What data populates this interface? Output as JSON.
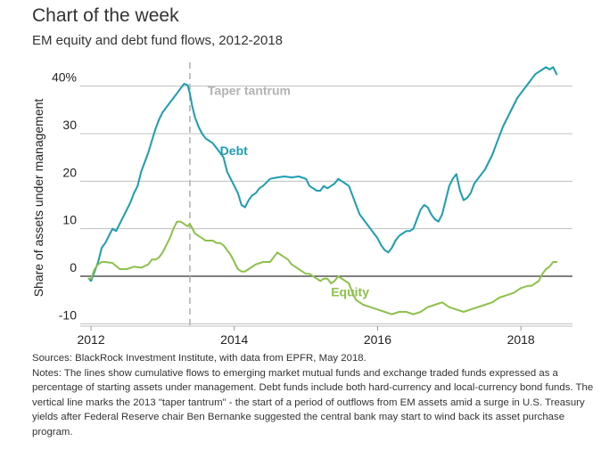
{
  "header": {
    "title": "Chart of the week",
    "subtitle": "EM equity and debt fund flows, 2012-2018"
  },
  "chart_data": {
    "type": "line",
    "ylabel": "Share of assets under management",
    "xlabel": "",
    "xlim": [
      2011.85,
      2018.72
    ],
    "ylim": [
      -10.5,
      45
    ],
    "y_ticks": [
      -10,
      0,
      10,
      20,
      30,
      40
    ],
    "y_tick_labels": [
      "-10",
      "0",
      "10",
      "20",
      "30",
      "40%"
    ],
    "x_ticks": [
      2012,
      2014,
      2016,
      2018
    ],
    "x_tick_labels": [
      "2012",
      "2014",
      "2016",
      "2018"
    ],
    "grid": true,
    "zero_line": 0,
    "vline": {
      "x": 2013.38,
      "label": "Taper tantrum",
      "color": "#b3b3b3"
    },
    "series": [
      {
        "name": "Debt",
        "color": "#1a9eb1",
        "label_at": [
          2013.8,
          25.5
        ],
        "x": [
          2011.97,
          2012.0,
          2012.05,
          2012.1,
          2012.15,
          2012.2,
          2012.25,
          2012.3,
          2012.35,
          2012.4,
          2012.45,
          2012.5,
          2012.55,
          2012.6,
          2012.65,
          2012.7,
          2012.75,
          2012.8,
          2012.85,
          2012.9,
          2012.95,
          2013.0,
          2013.05,
          2013.1,
          2013.15,
          2013.2,
          2013.25,
          2013.3,
          2013.35,
          2013.38,
          2013.41,
          2013.45,
          2013.5,
          2013.55,
          2013.6,
          2013.65,
          2013.7,
          2013.75,
          2013.8,
          2013.85,
          2013.9,
          2013.95,
          2014.0,
          2014.05,
          2014.1,
          2014.15,
          2014.2,
          2014.25,
          2014.3,
          2014.35,
          2014.4,
          2014.5,
          2014.6,
          2014.7,
          2014.8,
          2014.9,
          2015.0,
          2015.05,
          2015.1,
          2015.15,
          2015.2,
          2015.25,
          2015.3,
          2015.35,
          2015.4,
          2015.45,
          2015.5,
          2015.55,
          2015.6,
          2015.65,
          2015.7,
          2015.75,
          2015.8,
          2015.85,
          2015.9,
          2015.95,
          2016.0,
          2016.05,
          2016.1,
          2016.15,
          2016.2,
          2016.25,
          2016.3,
          2016.35,
          2016.4,
          2016.45,
          2016.5,
          2016.55,
          2016.6,
          2016.65,
          2016.7,
          2016.75,
          2016.8,
          2016.85,
          2016.9,
          2016.95,
          2017.0,
          2017.05,
          2017.1,
          2017.15,
          2017.2,
          2017.25,
          2017.3,
          2017.35,
          2017.4,
          2017.45,
          2017.5,
          2017.55,
          2017.6,
          2017.65,
          2017.7,
          2017.75,
          2017.8,
          2017.85,
          2017.9,
          2017.95,
          2018.0,
          2018.05,
          2018.1,
          2018.15,
          2018.2,
          2018.25,
          2018.3,
          2018.35,
          2018.4,
          2018.45,
          2018.5
        ],
        "values": [
          -0.5,
          -1.0,
          1.0,
          3.0,
          6.0,
          7.0,
          8.5,
          10.0,
          9.5,
          11.0,
          12.5,
          14.0,
          15.5,
          17.5,
          19.0,
          22.0,
          24.0,
          26.0,
          28.5,
          31.0,
          33.0,
          34.5,
          35.5,
          36.5,
          37.5,
          38.5,
          39.5,
          40.5,
          40.2,
          38.5,
          36.0,
          33.5,
          31.5,
          30.0,
          29.0,
          28.5,
          28.0,
          27.0,
          26.0,
          25.0,
          22.0,
          20.5,
          19.0,
          17.5,
          15.0,
          14.5,
          16.0,
          17.0,
          17.5,
          18.5,
          19.0,
          20.5,
          20.8,
          21.0,
          20.8,
          21.0,
          20.5,
          19.0,
          18.5,
          18.0,
          18.0,
          19.0,
          18.5,
          19.0,
          19.5,
          20.5,
          20.0,
          19.5,
          19.0,
          17.0,
          15.0,
          13.0,
          12.0,
          11.0,
          10.0,
          9.0,
          8.0,
          6.5,
          5.5,
          5.0,
          6.0,
          7.5,
          8.5,
          9.0,
          9.5,
          9.5,
          10.0,
          12.0,
          14.0,
          15.0,
          14.5,
          13.0,
          12.0,
          11.5,
          13.0,
          16.0,
          19.0,
          20.5,
          21.5,
          18.0,
          16.0,
          16.5,
          17.5,
          19.5,
          20.5,
          21.5,
          22.5,
          24.0,
          25.5,
          27.5,
          29.5,
          31.5,
          33.0,
          34.5,
          36.0,
          37.5,
          38.5,
          39.5,
          40.5,
          41.5,
          42.5,
          43.0,
          43.5,
          44.0,
          43.5,
          44.0,
          42.5
        ]
      },
      {
        "name": "Equity",
        "color": "#8cc14a",
        "label_at": [
          2015.35,
          -4.2
        ],
        "x": [
          2011.97,
          2012.0,
          2012.05,
          2012.1,
          2012.15,
          2012.2,
          2012.3,
          2012.4,
          2012.5,
          2012.6,
          2012.7,
          2012.8,
          2012.85,
          2012.9,
          2012.95,
          2013.0,
          2013.05,
          2013.1,
          2013.15,
          2013.2,
          2013.25,
          2013.3,
          2013.35,
          2013.38,
          2013.4,
          2013.45,
          2013.5,
          2013.55,
          2013.6,
          2013.65,
          2013.7,
          2013.75,
          2013.8,
          2013.85,
          2013.9,
          2013.95,
          2014.0,
          2014.05,
          2014.1,
          2014.15,
          2014.2,
          2014.3,
          2014.4,
          2014.5,
          2014.55,
          2014.6,
          2014.65,
          2014.7,
          2014.75,
          2014.8,
          2014.85,
          2014.9,
          2014.95,
          2015.0,
          2015.05,
          2015.1,
          2015.15,
          2015.2,
          2015.25,
          2015.3,
          2015.35,
          2015.4,
          2015.45,
          2015.5,
          2015.55,
          2015.6,
          2015.65,
          2015.7,
          2015.8,
          2015.9,
          2016.0,
          2016.1,
          2016.2,
          2016.3,
          2016.4,
          2016.5,
          2016.6,
          2016.7,
          2016.8,
          2016.9,
          2017.0,
          2017.1,
          2017.2,
          2017.3,
          2017.4,
          2017.5,
          2017.6,
          2017.7,
          2017.8,
          2017.9,
          2018.0,
          2018.1,
          2018.15,
          2018.2,
          2018.25,
          2018.3,
          2018.35,
          2018.4,
          2018.45,
          2018.5
        ],
        "values": [
          -0.5,
          -0.5,
          1.5,
          2.5,
          3.0,
          3.0,
          2.8,
          1.5,
          1.5,
          2.0,
          1.8,
          2.5,
          3.5,
          3.5,
          4.0,
          5.0,
          6.5,
          8.0,
          10.0,
          11.5,
          11.5,
          11.0,
          10.5,
          11.0,
          10.5,
          9.0,
          8.5,
          8.0,
          7.5,
          7.5,
          7.5,
          7.0,
          7.0,
          6.5,
          5.5,
          4.5,
          3.0,
          1.5,
          1.0,
          1.0,
          1.5,
          2.5,
          3.0,
          3.0,
          4.0,
          5.0,
          4.5,
          4.0,
          3.5,
          2.5,
          2.0,
          1.5,
          1.0,
          0.5,
          0.5,
          0.0,
          -0.5,
          -1.0,
          -0.5,
          -0.5,
          -1.5,
          -1.0,
          0.0,
          -0.5,
          -1.0,
          -1.5,
          -3.5,
          -5.0,
          -6.0,
          -6.5,
          -7.0,
          -7.5,
          -8.0,
          -7.5,
          -7.5,
          -8.0,
          -7.5,
          -6.5,
          -6.0,
          -5.5,
          -6.5,
          -7.0,
          -7.5,
          -7.0,
          -6.5,
          -6.0,
          -5.5,
          -4.5,
          -4.0,
          -3.5,
          -2.5,
          -2.0,
          -2.0,
          -1.5,
          -1.0,
          0.5,
          1.5,
          2.0,
          3.0,
          3.0
        ]
      }
    ]
  },
  "footer": {
    "sources": "Sources: BlackRock Investment Institute, with data from EPFR, May 2018.",
    "notes": "Notes: The lines show cumulative flows to emerging market mutual funds and exchange traded funds expressed as a percentage of starting assets under management. Debt funds include both hard-currency and local-currency bond funds. The vertical line marks the 2013 \"taper tantrum\" - the start of a period of outflows from EM assets amid a surge in U.S. Treasury yields after Federal Reserve chair Ben Bernanke suggested the central bank may start to wind back its asset purchase program."
  }
}
